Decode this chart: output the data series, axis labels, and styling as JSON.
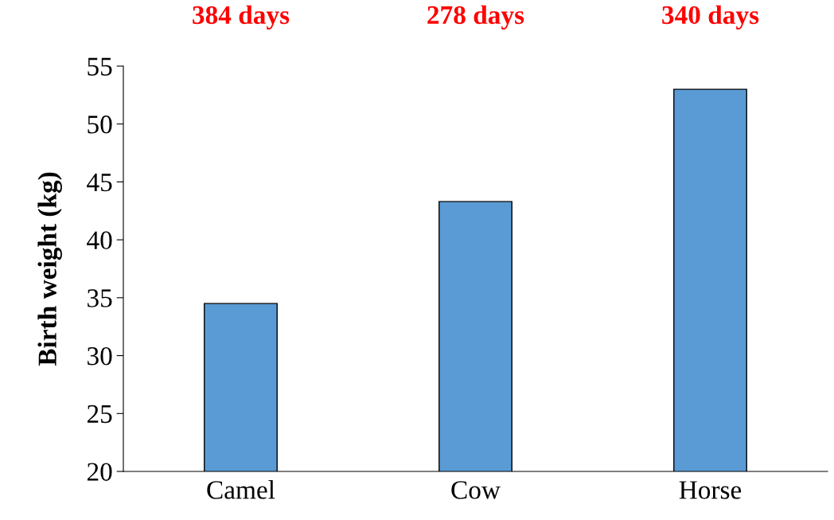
{
  "chart_data": {
    "type": "bar",
    "categories": [
      "Camel",
      "Cow",
      "Horse"
    ],
    "values": [
      34.5,
      43.3,
      53
    ],
    "color": "#5b9bd5",
    "ylabel": "Birth weight (kg)",
    "ylim": [
      20,
      55
    ],
    "yticks": [
      20,
      25,
      30,
      35,
      40,
      45,
      50,
      55
    ],
    "grid": false,
    "annotations": [
      "384 days",
      "278 days",
      "340 days"
    ]
  }
}
